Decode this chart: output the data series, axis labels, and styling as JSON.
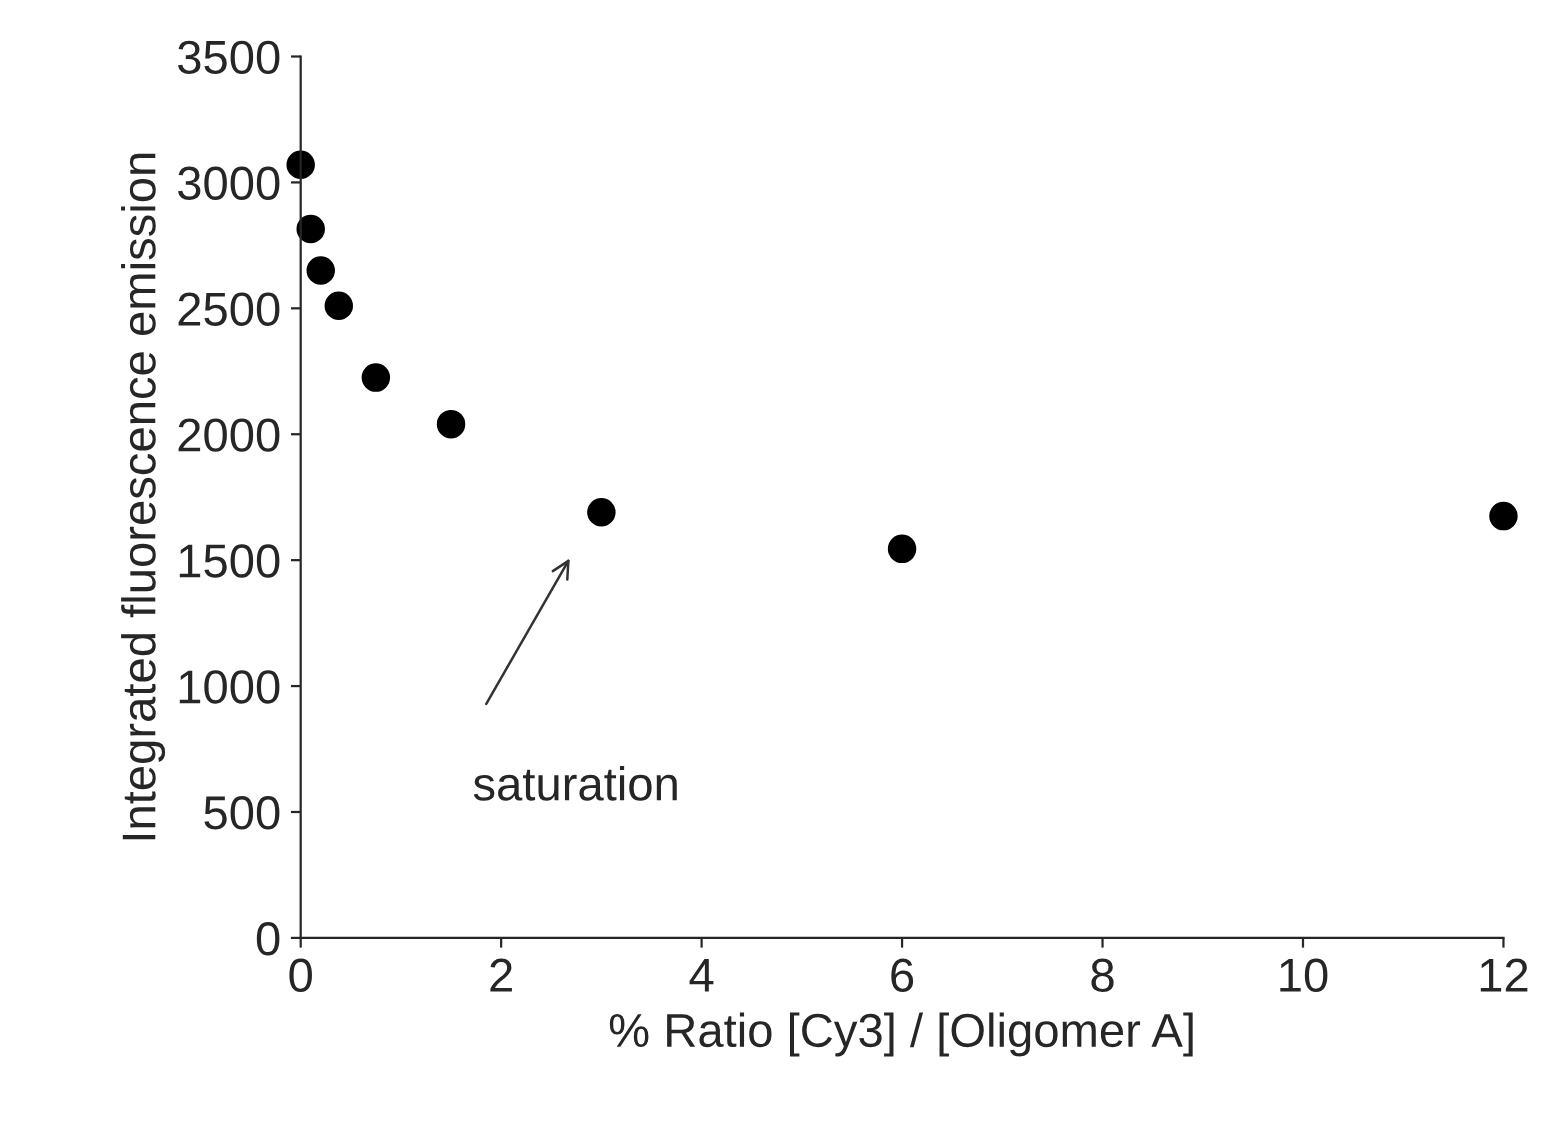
{
  "chart_data": {
    "type": "scatter",
    "xlabel": "% Ratio [Cy3] / [Oligomer A]",
    "ylabel": "Integrated fluorescence emission",
    "x": [
      0,
      0.1,
      0.2,
      0.38,
      0.75,
      1.5,
      3,
      6,
      12
    ],
    "series": [
      {
        "color": "#000000",
        "values": [
          3070,
          2815,
          2650,
          2510,
          2225,
          2040,
          1690,
          1545,
          1675
        ]
      }
    ],
    "xlim": [
      0,
      12
    ],
    "xticks": [
      0,
      2,
      4,
      6,
      8,
      10,
      12
    ],
    "ylim": [
      0,
      3500
    ],
    "yticks": [
      0,
      500,
      1000,
      1500,
      2000,
      2500,
      3000,
      3500
    ],
    "grid": false,
    "marker": "circle",
    "annotations": [
      "saturation"
    ]
  }
}
